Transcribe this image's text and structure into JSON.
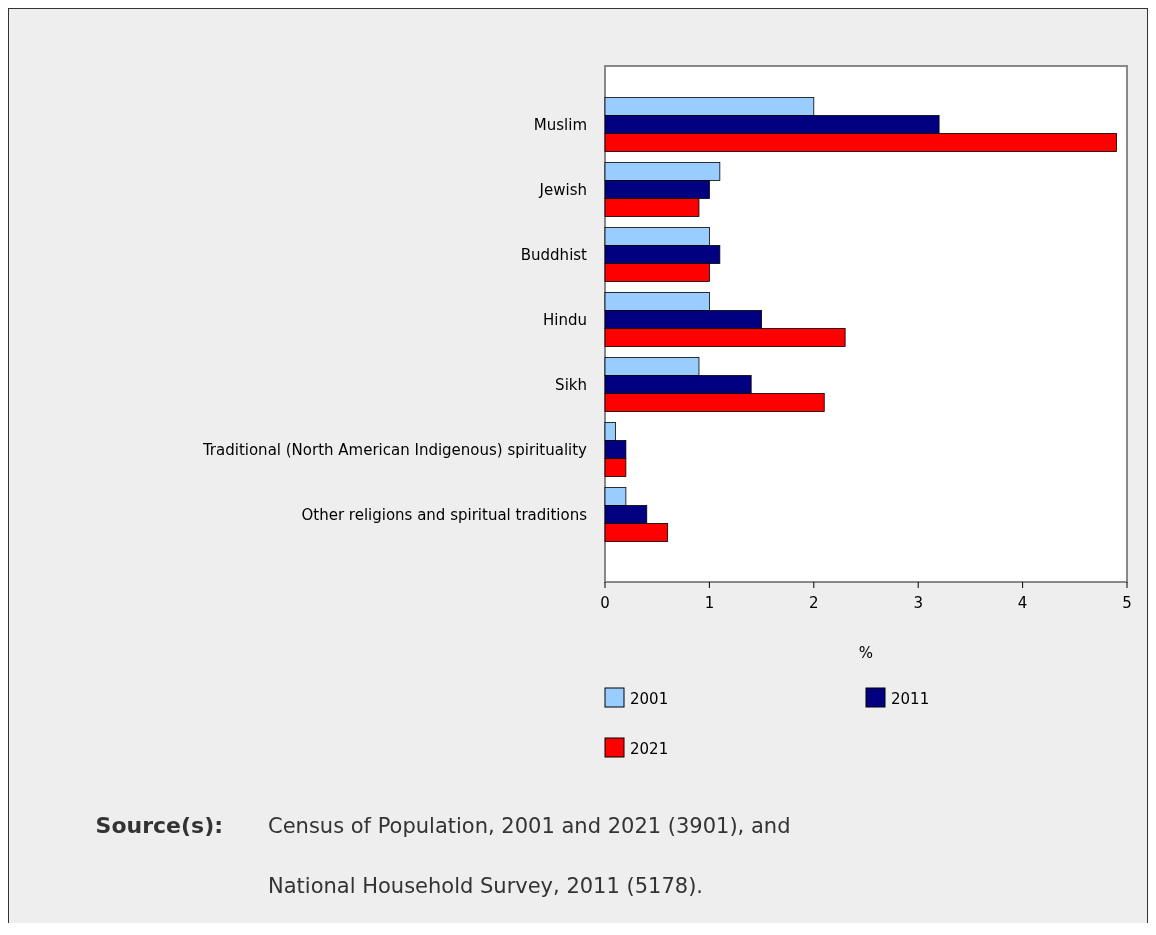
{
  "chart_data": {
    "type": "bar",
    "orientation": "horizontal",
    "xlabel": "%",
    "categories": [
      "Muslim",
      "Jewish",
      "Buddhist",
      "Hindu",
      "Sikh",
      "Traditional (North American Indigenous) spirituality",
      "Other religions and spiritual traditions"
    ],
    "series": [
      {
        "name": "2001",
        "color": "#99ccff",
        "values": [
          2.0,
          1.1,
          1.0,
          1.0,
          0.9,
          0.1,
          0.2
        ]
      },
      {
        "name": "2011",
        "color": "#000080",
        "values": [
          3.2,
          1.0,
          1.1,
          1.5,
          1.4,
          0.2,
          0.4
        ]
      },
      {
        "name": "2021",
        "color": "#ff0000",
        "values": [
          4.9,
          0.9,
          1.0,
          2.3,
          2.1,
          0.2,
          0.6
        ]
      }
    ],
    "xlim": [
      0,
      5
    ],
    "xticks": [
      0,
      1,
      2,
      3,
      4,
      5
    ],
    "grid": false,
    "legend": "bottom",
    "annotations": [
      "Source(s):",
      "Census of Population, 2001 and 2021 (3901), and National Household Survey, 2011 (5178)."
    ]
  }
}
